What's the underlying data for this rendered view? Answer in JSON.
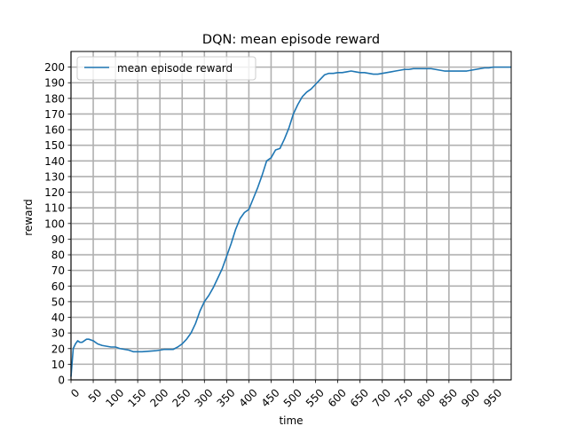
{
  "chart_data": {
    "type": "line",
    "title": "DQN: mean episode reward",
    "xlabel": "time",
    "ylabel": "reward",
    "xlim": [
      0,
      990
    ],
    "ylim": [
      0,
      210
    ],
    "xticks": [
      0,
      50,
      100,
      150,
      200,
      250,
      300,
      350,
      400,
      450,
      500,
      550,
      600,
      650,
      700,
      750,
      800,
      850,
      900,
      950
    ],
    "yticks": [
      0,
      10,
      20,
      30,
      40,
      50,
      60,
      70,
      80,
      90,
      100,
      110,
      120,
      130,
      140,
      150,
      160,
      170,
      180,
      190,
      200
    ],
    "grid": true,
    "legend_position": "top-left",
    "series": [
      {
        "name": "mean episode reward",
        "color": "#1f77b4",
        "x": [
          0,
          5,
          10,
          15,
          20,
          25,
          30,
          35,
          40,
          50,
          60,
          70,
          80,
          90,
          100,
          110,
          120,
          130,
          140,
          150,
          160,
          170,
          180,
          190,
          200,
          210,
          220,
          230,
          240,
          250,
          260,
          270,
          280,
          290,
          300,
          310,
          320,
          330,
          340,
          350,
          360,
          370,
          380,
          390,
          400,
          410,
          420,
          430,
          440,
          450,
          460,
          470,
          480,
          490,
          500,
          510,
          520,
          530,
          540,
          550,
          560,
          570,
          580,
          590,
          600,
          610,
          620,
          630,
          640,
          650,
          660,
          670,
          680,
          690,
          700,
          710,
          720,
          730,
          740,
          750,
          760,
          770,
          780,
          790,
          800,
          810,
          820,
          830,
          840,
          850,
          860,
          870,
          880,
          890,
          900,
          910,
          920,
          930,
          940,
          950,
          960,
          970,
          980,
          990
        ],
        "values": [
          2,
          20,
          23,
          25,
          24,
          24,
          25,
          26,
          26,
          25,
          23,
          22,
          21.5,
          21,
          21,
          20,
          19.5,
          19,
          18,
          18,
          18,
          18.2,
          18.4,
          18.6,
          19,
          19.5,
          19.5,
          19.5,
          21,
          23,
          26,
          30,
          36,
          44,
          50,
          54,
          59,
          65,
          71,
          79,
          87,
          96,
          103,
          107,
          109,
          116,
          123,
          131,
          140,
          142,
          147,
          148,
          154,
          161,
          170,
          176,
          181,
          184,
          186,
          189,
          192,
          195,
          196,
          196,
          196.5,
          196.5,
          197,
          197.5,
          197,
          196.5,
          196.5,
          196,
          195.5,
          195.5,
          196,
          196.5,
          197,
          197.5,
          198,
          198.5,
          198.5,
          199,
          199,
          199,
          199,
          199,
          198.5,
          198,
          197.5,
          197.5,
          197.5,
          197.5,
          197.5,
          197.5,
          198,
          198.5,
          199,
          199.5,
          199.5,
          200,
          200,
          200,
          200,
          200
        ]
      }
    ]
  }
}
